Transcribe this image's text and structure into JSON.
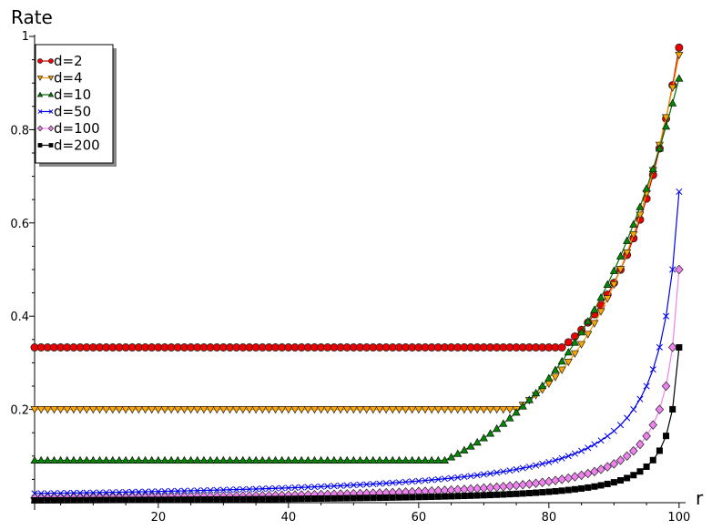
{
  "chart_data": {
    "type": "line",
    "title": "",
    "xlabel": "r",
    "ylabel": "Rate",
    "xlim": [
      1,
      101
    ],
    "ylim": [
      0,
      1
    ],
    "x_ticks": [
      "20",
      "40",
      "60",
      "80",
      "100"
    ],
    "y_ticks": [
      "0.2",
      "0.4",
      "0.6",
      "0.8",
      "1"
    ],
    "grid": false,
    "legend_position": "top-left",
    "x": {
      "start": 1,
      "end": 100
    },
    "series": [
      {
        "name": "d=2",
        "color": "#cc0000",
        "fill": "#ee0000",
        "marker": "circle",
        "flat_value": 0.333,
        "rise_from_r": 82,
        "end_value": 0.976
      },
      {
        "name": "d=4",
        "color": "#ee9900",
        "fill": "#ffa500",
        "marker": "triangle-down",
        "flat_value": 0.2,
        "rise_from_r": 75,
        "end_value": 0.96
      },
      {
        "name": "d=10",
        "color": "#007000",
        "fill": "#008800",
        "marker": "triangle-up",
        "flat_value": 0.0909,
        "rise_from_r": 64,
        "end_value": 0.91
      },
      {
        "name": "d=50",
        "color": "#0000ee",
        "fill": "#0000ee",
        "marker": "x",
        "start_value": 0.0196,
        "end_value": 0.667
      },
      {
        "name": "d=100",
        "color": "#ee82ee",
        "fill": "#ee82ee",
        "marker": "diamond",
        "start_value": 0.0099,
        "end_value": 0.5
      },
      {
        "name": "d=200",
        "color": "#000000",
        "fill": "#000000",
        "marker": "square",
        "start_value": 0.005,
        "end_value": 0.333
      }
    ]
  }
}
